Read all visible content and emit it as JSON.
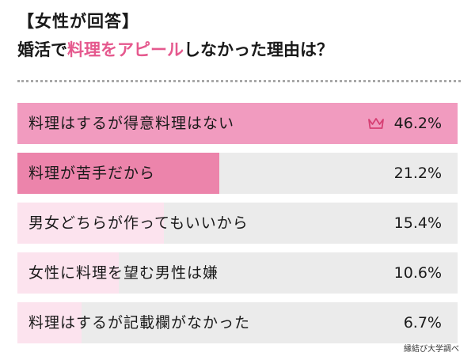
{
  "header": {
    "tag": "【女性が回答】",
    "question_pre": "婚活で",
    "question_highlight": "料理をアピール",
    "question_post": "しなかった理由は？"
  },
  "chart_data": {
    "type": "bar",
    "orientation": "horizontal",
    "categories": [
      "料理はするが得意料理はない",
      "料理が苦手だから",
      "男女どちらが作ってもいいから",
      "女性に料理を望む男性は嫌",
      "料理はするが記載欄がなかった"
    ],
    "values": [
      46.2,
      21.2,
      15.4,
      10.6,
      6.7
    ],
    "value_labels": [
      "46.2%",
      "21.2%",
      "15.4%",
      "10.6%",
      "6.7%"
    ],
    "unit": "%",
    "xlim": [
      0,
      46.2
    ],
    "colors": [
      "#f19bbf",
      "#ec84ab",
      "#fce3ee",
      "#fce3ee",
      "#fce3ee"
    ],
    "track_color": "#ebebeb",
    "top_marker": "crown-icon"
  },
  "source": "縁結び大学調べ"
}
